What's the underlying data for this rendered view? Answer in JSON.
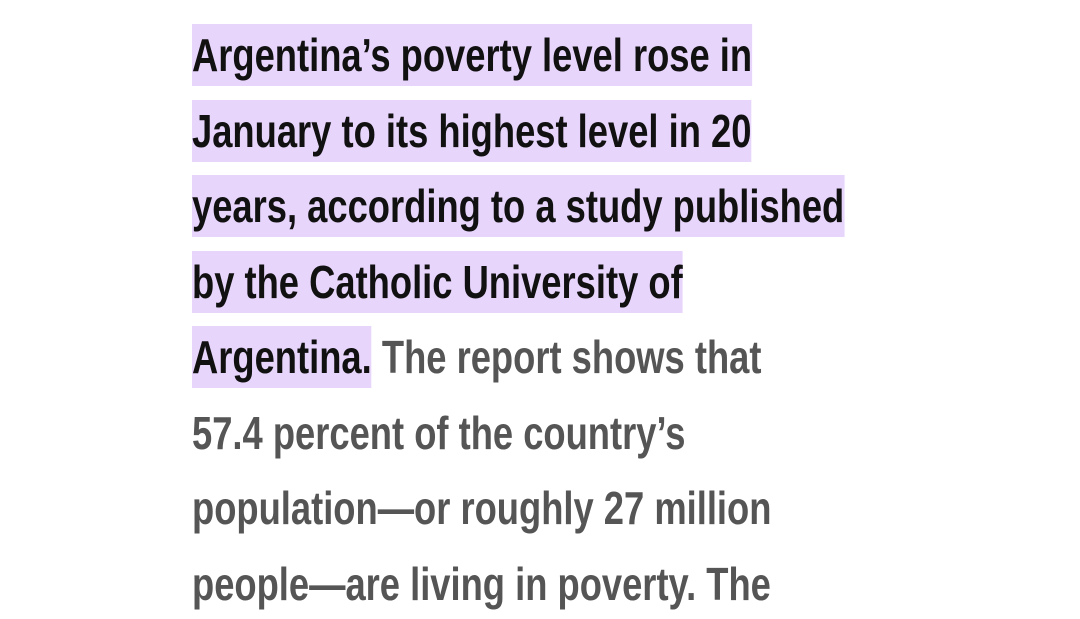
{
  "paragraph": {
    "lines": [
      [
        {
          "text": "Argentina’s poverty level rose in",
          "highlighted": true
        }
      ],
      [
        {
          "text": "January to its highest level in 20",
          "highlighted": true
        }
      ],
      [
        {
          "text": "years, according to a study published",
          "highlighted": true
        }
      ],
      [
        {
          "text": "by the Catholic University of",
          "highlighted": true
        }
      ],
      [
        {
          "text": "Argentina.",
          "highlighted": true
        },
        {
          "text": "The report shows that",
          "highlighted": false
        }
      ],
      [
        {
          "text": "57.4 percent of the country’s",
          "highlighted": false
        }
      ],
      [
        {
          "text": "population—or roughly 27 million",
          "highlighted": false
        }
      ],
      [
        {
          "text": "people—are living in poverty. The",
          "highlighted": false
        }
      ]
    ]
  }
}
